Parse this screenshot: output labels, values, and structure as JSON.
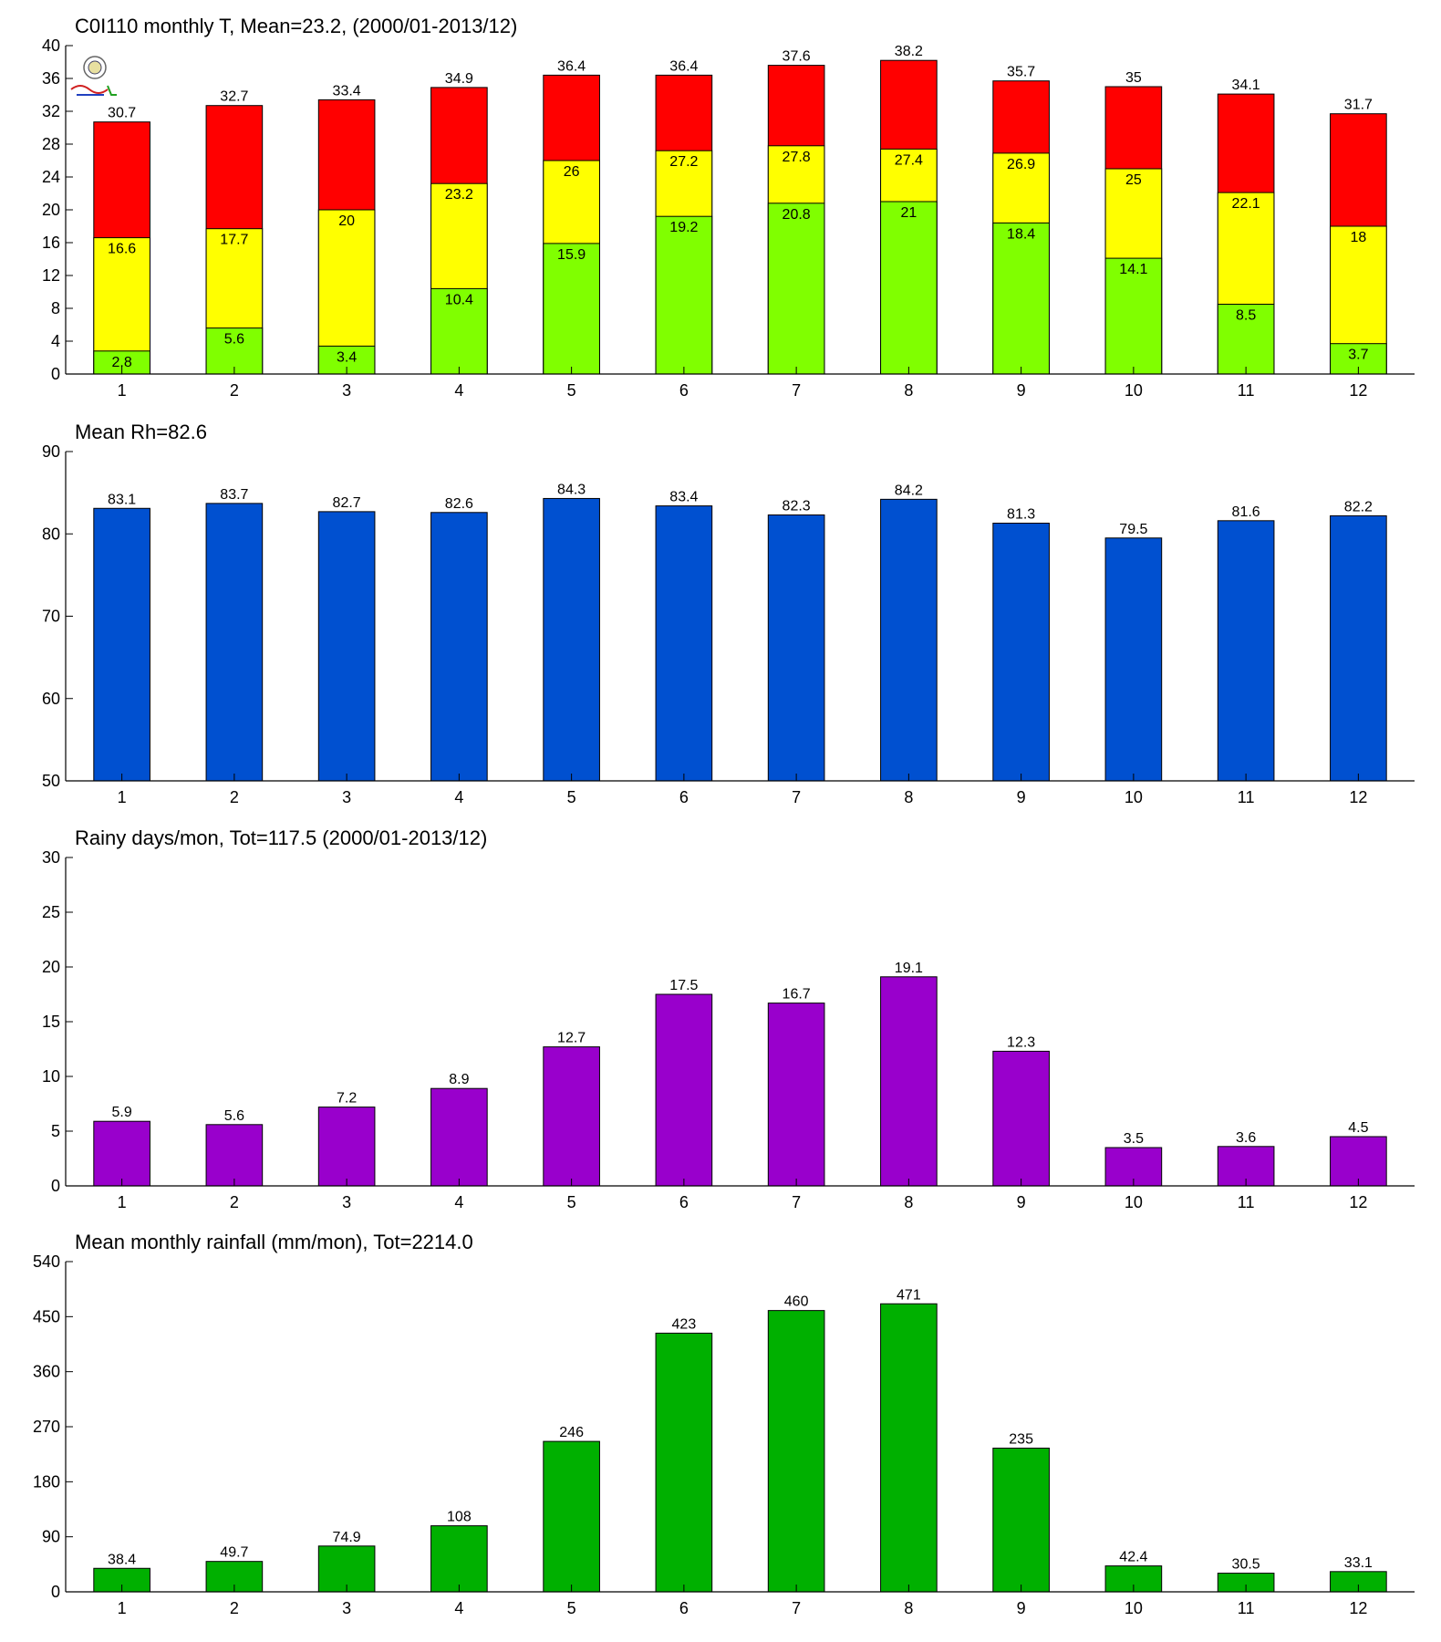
{
  "chart_data": [
    {
      "type": "bar",
      "subtype": "stacked-overlay",
      "title": "C0I110 monthly T, Mean=23.2, (2000/01-2013/12)",
      "xlabel": "",
      "ylabel": "",
      "categories": [
        "1",
        "2",
        "3",
        "4",
        "5",
        "6",
        "7",
        "8",
        "9",
        "10",
        "11",
        "12"
      ],
      "ylim": [
        0,
        40
      ],
      "yticks": [
        0,
        4,
        8,
        12,
        16,
        20,
        24,
        28,
        32,
        36,
        40
      ],
      "series": [
        {
          "values": [
            30.7,
            32.7,
            33.4,
            34.9,
            36.4,
            36.4,
            37.6,
            38.2,
            35.7,
            35,
            34.1,
            31.7
          ],
          "color": "#ff0000"
        },
        {
          "values": [
            16.6,
            17.7,
            20,
            23.2,
            26,
            27.2,
            27.8,
            27.4,
            26.9,
            25,
            22.1,
            18
          ],
          "color": "#ffff00"
        },
        {
          "values": [
            2.8,
            5.6,
            3.4,
            10.4,
            15.9,
            19.2,
            20.8,
            21,
            18.4,
            14.1,
            8.5,
            3.7
          ],
          "color": "#80ff00"
        }
      ],
      "logo": "station-lab-logo",
      "grid": false,
      "legend": "none"
    },
    {
      "type": "bar",
      "title": "Mean Rh=82.6",
      "xlabel": "",
      "ylabel": "",
      "categories": [
        "1",
        "2",
        "3",
        "4",
        "5",
        "6",
        "7",
        "8",
        "9",
        "10",
        "11",
        "12"
      ],
      "ylim": [
        50,
        90
      ],
      "yticks": [
        50,
        60,
        70,
        80,
        90
      ],
      "series": [
        {
          "values": [
            83.1,
            83.7,
            82.7,
            82.6,
            84.3,
            83.4,
            82.3,
            84.2,
            81.3,
            79.5,
            81.6,
            82.2
          ],
          "color": "#0050d0"
        }
      ],
      "grid": false,
      "legend": "none"
    },
    {
      "type": "bar",
      "title": "Rainy days/mon, Tot=117.5 (2000/01-2013/12)",
      "xlabel": "",
      "ylabel": "",
      "categories": [
        "1",
        "2",
        "3",
        "4",
        "5",
        "6",
        "7",
        "8",
        "9",
        "10",
        "11",
        "12"
      ],
      "ylim": [
        0,
        30
      ],
      "yticks": [
        0,
        5,
        10,
        15,
        20,
        25,
        30
      ],
      "series": [
        {
          "values": [
            5.9,
            5.6,
            7.2,
            8.9,
            12.7,
            17.5,
            16.7,
            19.1,
            12.3,
            3.5,
            3.6,
            4.5
          ],
          "color": "#9900cc"
        }
      ],
      "grid": false,
      "legend": "none"
    },
    {
      "type": "bar",
      "title": "Mean monthly rainfall (mm/mon), Tot=2214.0",
      "xlabel": "",
      "ylabel": "",
      "categories": [
        "1",
        "2",
        "3",
        "4",
        "5",
        "6",
        "7",
        "8",
        "9",
        "10",
        "11",
        "12"
      ],
      "ylim": [
        0,
        540
      ],
      "yticks": [
        0,
        90,
        180,
        270,
        360,
        450,
        540
      ],
      "series": [
        {
          "values": [
            38.4,
            49.7,
            74.9,
            108,
            246,
            423,
            460,
            471,
            235,
            42.4,
            30.5,
            33.1
          ],
          "color": "#00b000"
        }
      ],
      "grid": false,
      "legend": "none"
    }
  ]
}
